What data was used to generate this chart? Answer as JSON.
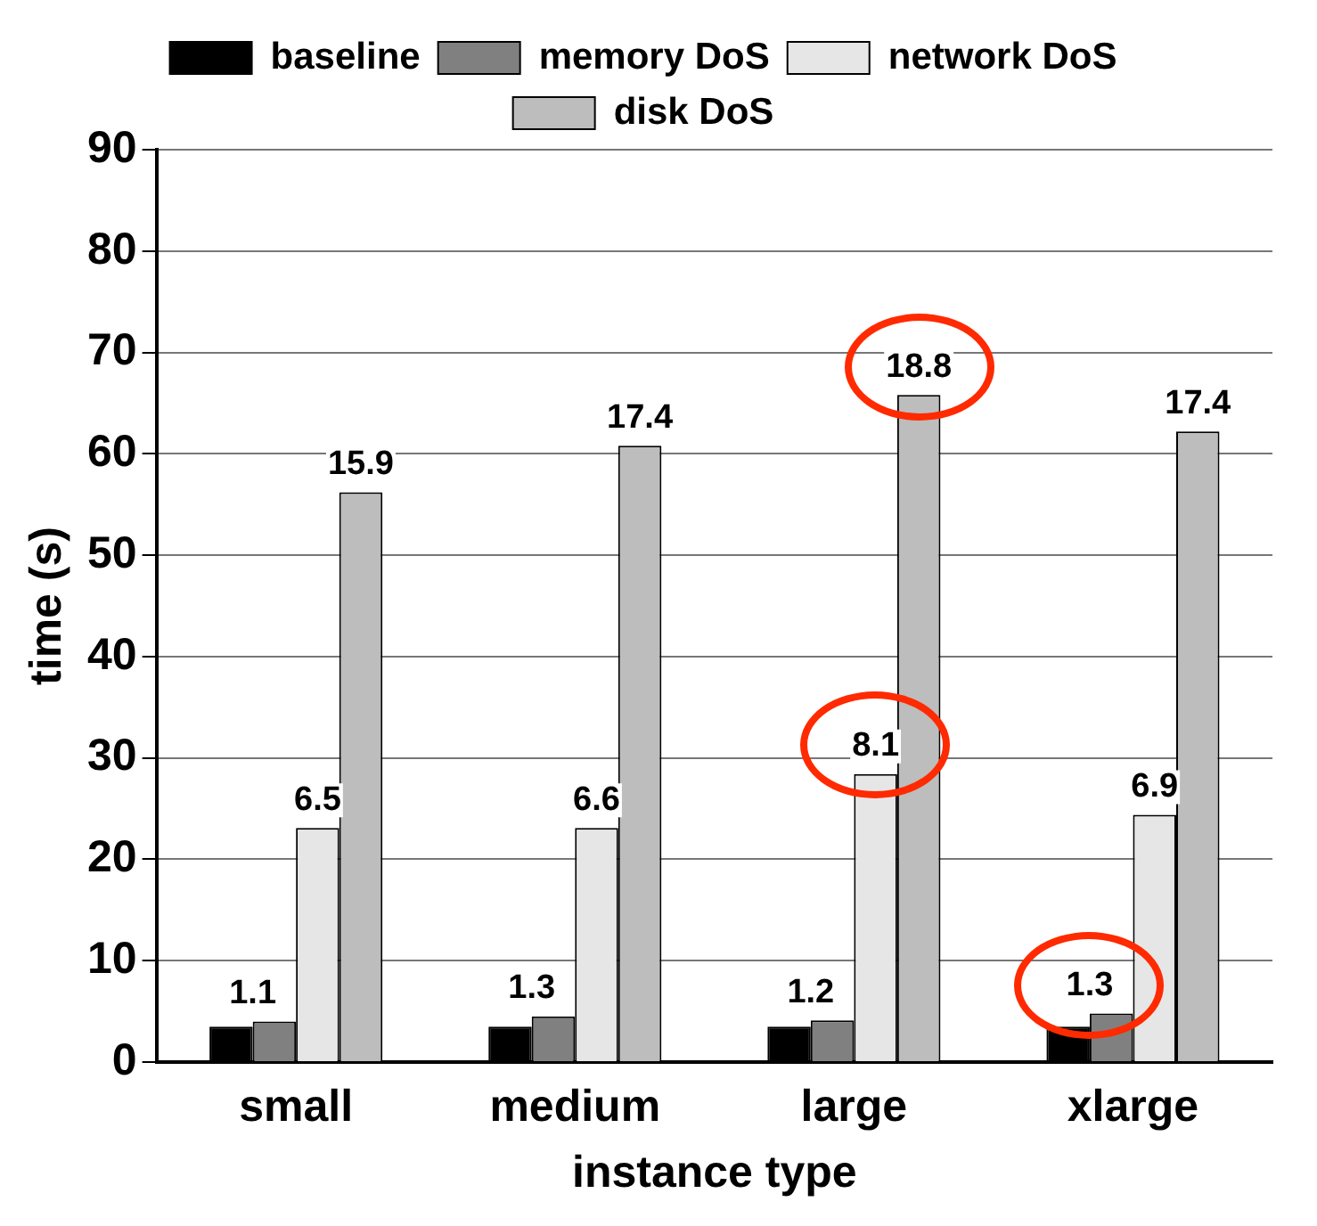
{
  "chart_data": {
    "type": "bar",
    "xlabel": "instance type",
    "ylabel": "time (s)",
    "categories": [
      "small",
      "medium",
      "large",
      "xlarge"
    ],
    "series": [
      {
        "name": "baseline",
        "color": "#000000",
        "values": [
          3.5,
          3.5,
          3.5,
          3.5
        ]
      },
      {
        "name": "memory DoS",
        "color": "#808080",
        "values": [
          4.0,
          4.5,
          4.1,
          4.8
        ]
      },
      {
        "name": "network DoS",
        "color": "#e6e6e6",
        "values": [
          23.1,
          23.1,
          28.4,
          24.4
        ]
      },
      {
        "name": "disk DoS",
        "color": "#bdbdbd",
        "values": [
          56.2,
          60.8,
          65.8,
          62.2
        ]
      }
    ],
    "annotations": [
      {
        "text": "1.1",
        "x": "small",
        "y": 4.0
      },
      {
        "text": "6.5",
        "x": "small",
        "y": 23.1
      },
      "15.9",
      {
        "text": "1.3",
        "x": "medium",
        "y": 4.5
      },
      {
        "text": "6.6",
        "x": "medium",
        "y": 23.1
      },
      "17.4",
      {
        "text": "1.2",
        "x": "large",
        "y": 4.1
      },
      {
        "text": "8.1",
        "x": "large",
        "y": 28.4
      },
      "18.8",
      {
        "text": "1.3",
        "x": "xlarge",
        "y": 4.8
      },
      {
        "text": "6.9",
        "x": "xlarge",
        "y": 24.4
      },
      "17.4"
    ],
    "ylim": [
      0,
      90
    ],
    "yticks": [
      0,
      10,
      20,
      30,
      40,
      50,
      60,
      70,
      80,
      90
    ],
    "grid": "y",
    "legend": "top"
  }
}
